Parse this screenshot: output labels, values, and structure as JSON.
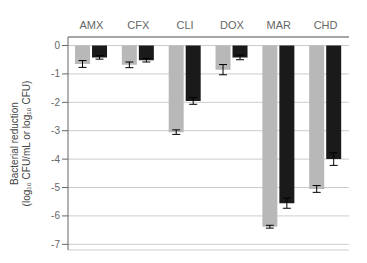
{
  "chart_data": {
    "type": "bar",
    "ylabel": "Bacterial reduction\n(log₁₀ CFU/mL or log₁₀ CFU)",
    "categories": [
      "AMX",
      "CFX",
      "CLI",
      "DOX",
      "MAR",
      "CHD"
    ],
    "series": [
      {
        "color": "#b8b8b8",
        "values": [
          -0.65,
          -0.68,
          -3.05,
          -0.85,
          -6.38,
          -5.05
        ],
        "errors": [
          0.12,
          0.1,
          0.08,
          0.18,
          0.05,
          0.12
        ]
      },
      {
        "color": "#1a1a1a",
        "values": [
          -0.42,
          -0.52,
          -1.95,
          -0.42,
          -5.55,
          -4.0
        ],
        "errors": [
          0.06,
          0.06,
          0.12,
          0.08,
          0.18,
          0.22
        ]
      }
    ],
    "ylim": [
      -7.2,
      0.3
    ],
    "yticks": [
      0,
      -1,
      -2,
      -3,
      -4,
      -5,
      -6,
      -7
    ],
    "grid": true
  }
}
